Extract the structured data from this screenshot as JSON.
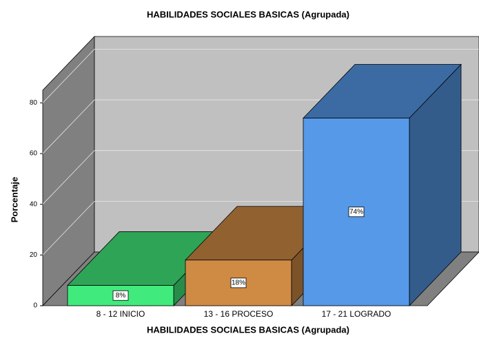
{
  "chart_data": {
    "type": "bar3d",
    "title": "HABILIDADES SOCIALES BASICAS (Agrupada)",
    "x_label": "HABILIDADES SOCIALES BASICAS (Agrupada)",
    "y_label": "Porcentaje",
    "categories": [
      "8 - 12 INICIO",
      "13 - 16 PROCESO",
      "17 - 21 LOGRADO"
    ],
    "values": [
      8,
      18,
      74
    ],
    "value_labels": [
      "8%",
      "18%",
      "74%"
    ],
    "colors": [
      "#41ea7c",
      "#cf8a44",
      "#5599e8"
    ],
    "ylim": [
      0,
      85
    ],
    "yticks": [
      0,
      20,
      40,
      60,
      80
    ],
    "grid": true
  }
}
